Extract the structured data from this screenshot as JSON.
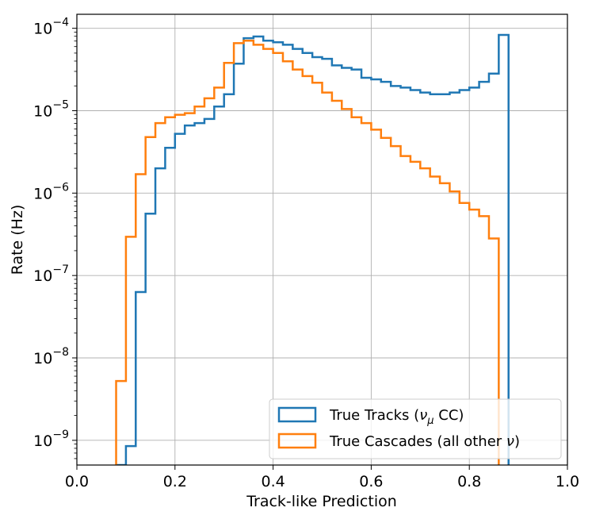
{
  "chart_data": {
    "type": "step-histogram",
    "xlabel": "Track-like Prediction",
    "ylabel": "Rate (Hz)",
    "xlim": [
      0.0,
      1.0
    ],
    "ylim_log10": [
      -9.3,
      -3.83
    ],
    "yscale": "log",
    "grid": true,
    "legend_position": "lower-right",
    "x_ticks": [
      {
        "value": 0.0,
        "label": "0.0"
      },
      {
        "value": 0.2,
        "label": "0.2"
      },
      {
        "value": 0.4,
        "label": "0.4"
      },
      {
        "value": 0.6,
        "label": "0.6"
      },
      {
        "value": 0.8,
        "label": "0.8"
      },
      {
        "value": 1.0,
        "label": "1.0"
      }
    ],
    "y_ticks": [
      {
        "exp": -9,
        "base": "10",
        "sup": "−9"
      },
      {
        "exp": -8,
        "base": "10",
        "sup": "−8"
      },
      {
        "exp": -7,
        "base": "10",
        "sup": "−7"
      },
      {
        "exp": -6,
        "base": "10",
        "sup": "−6"
      },
      {
        "exp": -5,
        "base": "10",
        "sup": "−5"
      },
      {
        "exp": -4,
        "base": "10",
        "sup": "−4"
      }
    ],
    "bin_width": 0.02,
    "series": [
      {
        "key": "tracks",
        "color": "#1f77b4",
        "legend_main": "True Tracks (",
        "legend_greek": "ν",
        "legend_sub": "μ",
        "legend_tail": " CC)",
        "bins_start": 0.08,
        "log10_values": [
          -10.3,
          -9.07,
          -7.2,
          -6.25,
          -5.7,
          -5.45,
          -5.28,
          -5.18,
          -5.15,
          -5.1,
          -4.95,
          -4.8,
          -4.43,
          -4.12,
          -4.1,
          -4.15,
          -4.17,
          -4.2,
          -4.25,
          -4.3,
          -4.35,
          -4.37,
          -4.45,
          -4.48,
          -4.5,
          -4.6,
          -4.62,
          -4.65,
          -4.7,
          -4.72,
          -4.75,
          -4.78,
          -4.8,
          -4.8,
          -4.78,
          -4.75,
          -4.72,
          -4.65,
          -4.55,
          -4.08
        ]
      },
      {
        "key": "cascades",
        "color": "#ff7f0e",
        "legend_main": "True Cascades (all other ",
        "legend_greek": "ν",
        "legend_tail": ")",
        "bins_start": 0.08,
        "log10_values": [
          -8.28,
          -6.53,
          -5.77,
          -5.32,
          -5.15,
          -5.08,
          -5.05,
          -5.03,
          -4.95,
          -4.85,
          -4.72,
          -4.42,
          -4.18,
          -4.15,
          -4.2,
          -4.25,
          -4.3,
          -4.4,
          -4.5,
          -4.58,
          -4.66,
          -4.78,
          -4.88,
          -4.98,
          -5.08,
          -5.15,
          -5.23,
          -5.33,
          -5.43,
          -5.55,
          -5.62,
          -5.7,
          -5.8,
          -5.88,
          -5.98,
          -6.12,
          -6.2,
          -6.28,
          -6.55
        ]
      }
    ]
  }
}
